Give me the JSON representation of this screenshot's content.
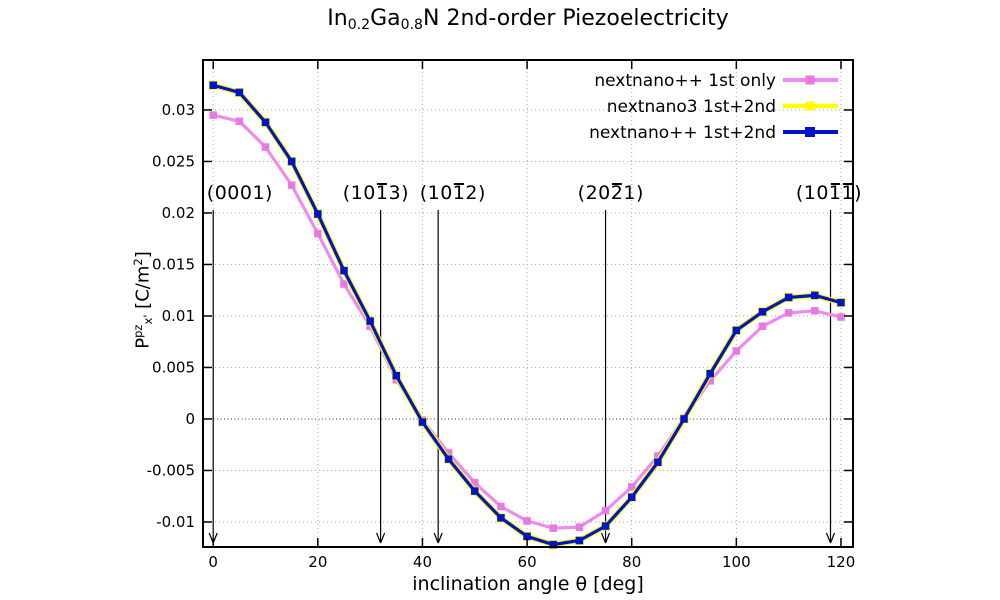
{
  "window": {
    "background": "#ffffff"
  },
  "chart_data": {
    "type": "line",
    "title": "In0.2Ga0.8N 2nd-order Piezoelectricity",
    "title_parts": [
      {
        "t": "In"
      },
      {
        "t": "0.2",
        "sub": true
      },
      {
        "t": "Ga"
      },
      {
        "t": "0.8",
        "sub": true
      },
      {
        "t": "N 2nd-order Piezoelectricity"
      }
    ],
    "xlabel": "inclination angle θ [deg]",
    "ylabel": "P^pz_x' [C/m2]",
    "ylabel_parts": [
      {
        "t": "P"
      },
      {
        "t": "pz",
        "sup": true
      },
      {
        "t": "x'",
        "sub": true
      },
      {
        "t": " [C/m"
      },
      {
        "t": "2",
        "sup": true
      },
      {
        "t": "]"
      }
    ],
    "x": [
      0,
      5,
      10,
      15,
      20,
      25,
      30,
      35,
      40,
      45,
      50,
      55,
      60,
      65,
      70,
      75,
      80,
      85,
      90,
      95,
      100,
      105,
      110,
      115,
      120
    ],
    "series": [
      {
        "name": "nextnano++ 1st only",
        "color": "#ee8aec",
        "marker_color": "#e878e2",
        "line_width": 3.2,
        "marker_size": 7.5,
        "values": [
          0.0295,
          0.0289,
          0.0264,
          0.0227,
          0.018,
          0.0131,
          0.009,
          0.0038,
          -0.0001,
          -0.0033,
          -0.0062,
          -0.0085,
          -0.0099,
          -0.0106,
          -0.0105,
          -0.0089,
          -0.0066,
          -0.0036,
          0.0001,
          0.0037,
          0.0066,
          0.009,
          0.0103,
          0.0105,
          0.0099
        ]
      },
      {
        "name": "nextnano3 1st+2nd",
        "color": "#ffff00",
        "marker_color": "#ffff00",
        "line_width": 5.5,
        "marker_size": 9,
        "values": [
          0.0324,
          0.0317,
          0.0288,
          0.025,
          0.0199,
          0.0144,
          0.0095,
          0.0042,
          -0.0003,
          -0.0039,
          -0.007,
          -0.0096,
          -0.0114,
          -0.0122,
          -0.0118,
          -0.0104,
          -0.0076,
          -0.0042,
          0.0,
          0.0044,
          0.0086,
          0.0104,
          0.0118,
          0.012,
          0.0113
        ]
      },
      {
        "name": "nextnano++ 1st+2nd",
        "color": "#0013cd",
        "marker_color": "#0013cd",
        "line_width": 3.2,
        "marker_size": 7.5,
        "values": [
          0.0324,
          0.0317,
          0.0288,
          0.025,
          0.0199,
          0.0144,
          0.0095,
          0.0042,
          -0.0003,
          -0.0039,
          -0.007,
          -0.0096,
          -0.0114,
          -0.0122,
          -0.0118,
          -0.0104,
          -0.0076,
          -0.0042,
          0.0,
          0.0044,
          0.0086,
          0.0104,
          0.0118,
          0.012,
          0.0113
        ]
      }
    ],
    "xlim": [
      -1.95,
      122.3
    ],
    "ylim": [
      -0.01243,
      0.03485
    ],
    "xticks": [
      0,
      20,
      40,
      60,
      80,
      100,
      120
    ],
    "yticks": [
      0.03,
      0.025,
      0.02,
      0.015,
      0.01,
      0.005,
      0,
      -0.005,
      -0.01
    ],
    "grid": true,
    "zero_line": true,
    "legend": {
      "position": "top-right",
      "entries": [
        "nextnano++ 1st only",
        "nextnano3 1st+2nd",
        "nextnano++ 1st+2nd"
      ]
    },
    "annotations": [
      {
        "text": "(0001)",
        "parts": [
          {
            "t": "(0001)"
          }
        ],
        "arrow_theta": 0,
        "label_theta": 5.1
      },
      {
        "text": "(10-13)",
        "parts": [
          {
            "t": "(10"
          },
          {
            "t": "1",
            "bar": true
          },
          {
            "t": "3)"
          }
        ],
        "arrow_theta": 32,
        "label_theta": 31.1
      },
      {
        "text": "(10-12)",
        "parts": [
          {
            "t": "(10"
          },
          {
            "t": "1",
            "bar": true
          },
          {
            "t": "2)"
          }
        ],
        "arrow_theta": 43,
        "label_theta": 45.8
      },
      {
        "text": "(20-21)",
        "parts": [
          {
            "t": "(20"
          },
          {
            "t": "2",
            "bar": true
          },
          {
            "t": "1)"
          }
        ],
        "arrow_theta": 75,
        "label_theta": 76.0
      },
      {
        "text": "(10-1-1)",
        "parts": [
          {
            "t": "(10"
          },
          {
            "t": "1",
            "bar": true
          },
          {
            "t": "1",
            "bar": true
          },
          {
            "t": ")"
          }
        ],
        "arrow_theta": 118,
        "label_theta": 117.7
      }
    ],
    "colors": {
      "grid": "#aaaaaa",
      "zero_line": "#333333",
      "axis": "#000000",
      "background": "#ffffff"
    }
  }
}
